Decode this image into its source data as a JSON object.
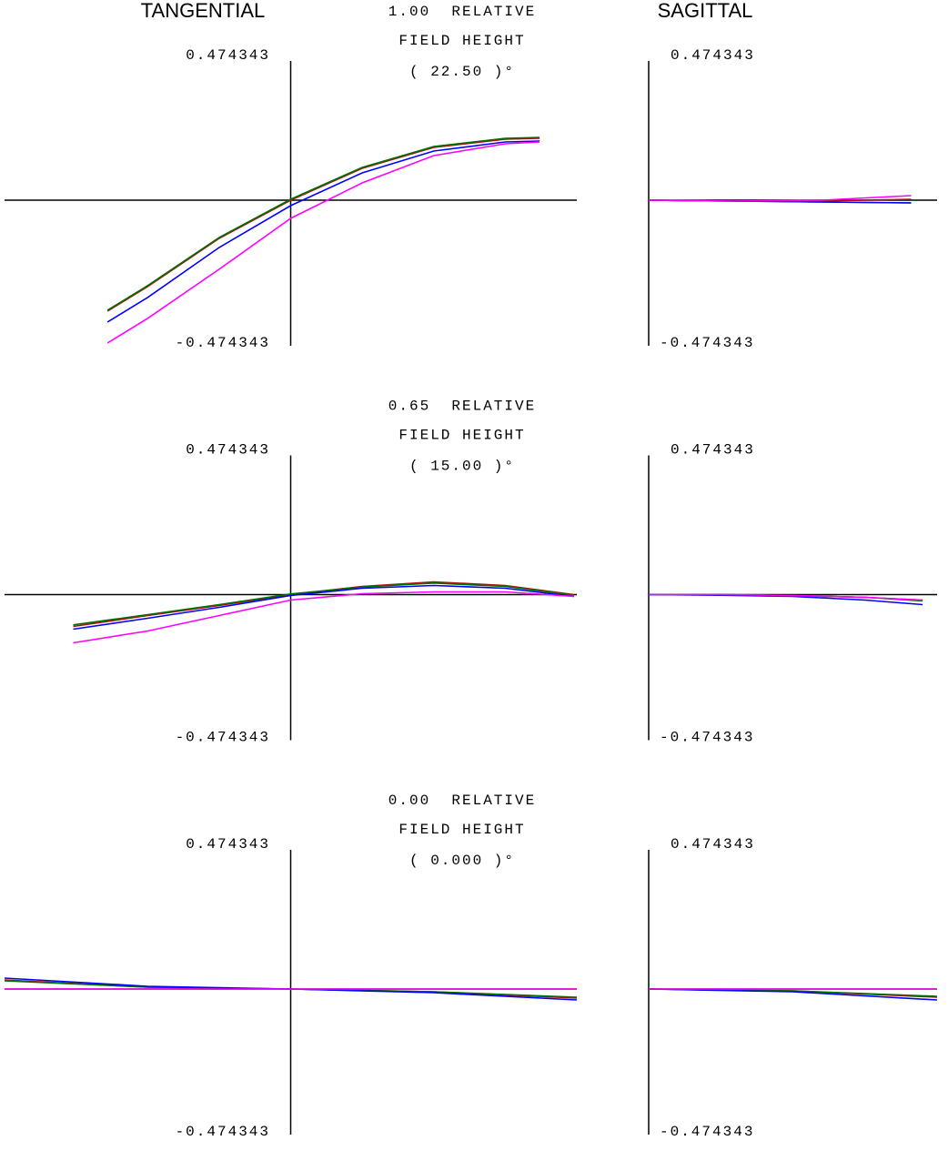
{
  "chart_data": [
    {
      "type": "line",
      "title": "TANGENTIAL",
      "annotations": [
        "1.00  RELATIVE",
        "FIELD HEIGHT",
        "( 22.50 )°"
      ],
      "x": [
        -0.64,
        -0.5,
        -0.25,
        0,
        0.25,
        0.5,
        0.75,
        0.87
      ],
      "xlim": [
        -1,
        1
      ],
      "ylim": [
        -0.474343,
        0.474343
      ],
      "yticks": [
        0.474343,
        -0.474343
      ],
      "series": [
        {
          "color": "#b01010",
          "values": [
            -0.366,
            -0.285,
            -0.126,
            0,
            0.105,
            0.174,
            0.201,
            0.204
          ]
        },
        {
          "color": "#007000",
          "values": [
            -0.363,
            -0.282,
            -0.123,
            0.003,
            0.108,
            0.177,
            0.204,
            0.207
          ]
        },
        {
          "color": "#0000ff",
          "values": [
            -0.402,
            -0.321,
            -0.156,
            -0.018,
            0.09,
            0.162,
            0.192,
            0.195
          ]
        },
        {
          "color": "#ff00ff",
          "values": [
            -0.471,
            -0.39,
            -0.228,
            -0.06,
            0.057,
            0.147,
            0.186,
            0.192
          ]
        }
      ]
    },
    {
      "type": "line",
      "title": "SAGITTAL",
      "x": [
        0,
        0.3,
        0.6,
        0.91
      ],
      "xlim": [
        0,
        1
      ],
      "ylim": [
        -0.474343,
        0.474343
      ],
      "yticks": [
        0.474343,
        -0.474343
      ],
      "series": [
        {
          "color": "#b01010",
          "values": [
            0,
            -0.003,
            -0.003,
            0.003
          ]
        },
        {
          "color": "#007000",
          "values": [
            0,
            -0.003,
            -0.006,
            -0.009
          ]
        },
        {
          "color": "#0000ff",
          "values": [
            0,
            -0.003,
            -0.006,
            -0.009
          ]
        },
        {
          "color": "#ff00ff",
          "values": [
            0,
            -0.003,
            0,
            0.015
          ]
        }
      ]
    },
    {
      "type": "line",
      "annotations": [
        "0.65  RELATIVE",
        "FIELD HEIGHT",
        "( 15.00 )°"
      ],
      "x": [
        -0.76,
        -0.5,
        -0.25,
        0,
        0.25,
        0.5,
        0.75,
        0.99
      ],
      "xlim": [
        -1,
        1
      ],
      "ylim": [
        -0.474343,
        0.474343
      ],
      "yticks": [
        0.474343,
        -0.474343
      ],
      "series": [
        {
          "color": "#b01010",
          "values": [
            -0.105,
            -0.069,
            -0.036,
            0,
            0.027,
            0.042,
            0.03,
            0
          ]
        },
        {
          "color": "#007000",
          "values": [
            -0.1,
            -0.066,
            -0.033,
            0.002,
            0.025,
            0.038,
            0.027,
            -0.002
          ]
        },
        {
          "color": "#0000ff",
          "values": [
            -0.114,
            -0.078,
            -0.042,
            -0.003,
            0.021,
            0.03,
            0.021,
            -0.006
          ]
        },
        {
          "color": "#ff00ff",
          "values": [
            -0.159,
            -0.12,
            -0.069,
            -0.018,
            0.003,
            0.009,
            0.009,
            -0.006
          ]
        }
      ]
    },
    {
      "type": "line",
      "x": [
        0,
        0.25,
        0.5,
        0.75,
        0.95
      ],
      "xlim": [
        0,
        1
      ],
      "ylim": [
        -0.474343,
        0.474343
      ],
      "yticks": [
        0.474343,
        -0.474343
      ],
      "series": [
        {
          "color": "#b01010",
          "values": [
            0,
            0,
            -0.003,
            -0.009,
            -0.018
          ]
        },
        {
          "color": "#007000",
          "values": [
            0,
            0,
            -0.003,
            -0.009,
            -0.021
          ]
        },
        {
          "color": "#0000ff",
          "values": [
            0,
            -0.002,
            -0.006,
            -0.018,
            -0.033
          ]
        },
        {
          "color": "#ff00ff",
          "values": [
            0,
            0,
            -0.003,
            -0.009,
            -0.018
          ]
        }
      ]
    },
    {
      "type": "line",
      "annotations": [
        "0.00  RELATIVE",
        "FIELD HEIGHT",
        "( 0.000 )°"
      ],
      "x": [
        -1,
        -0.5,
        0,
        0.5,
        1
      ],
      "xlim": [
        -1,
        1
      ],
      "ylim": [
        -0.474343,
        0.474343
      ],
      "yticks": [
        0.474343,
        -0.474343
      ],
      "series": [
        {
          "color": "#b01010",
          "values": [
            0.03,
            0.006,
            0,
            -0.009,
            -0.03
          ]
        },
        {
          "color": "#007000",
          "values": [
            0.027,
            0.006,
            0,
            -0.009,
            -0.027
          ]
        },
        {
          "color": "#0000ff",
          "values": [
            0.036,
            0.009,
            0,
            -0.012,
            -0.036
          ]
        },
        {
          "color": "#ff00ff",
          "values": [
            0,
            0,
            0,
            0,
            0
          ]
        }
      ]
    },
    {
      "type": "line",
      "x": [
        0,
        0.5,
        1
      ],
      "xlim": [
        0,
        1
      ],
      "ylim": [
        -0.474343,
        0.474343
      ],
      "yticks": [
        0.474343,
        -0.474343
      ],
      "series": [
        {
          "color": "#b01010",
          "values": [
            0,
            -0.006,
            -0.027
          ]
        },
        {
          "color": "#007000",
          "values": [
            0,
            -0.006,
            -0.024
          ]
        },
        {
          "color": "#0000ff",
          "values": [
            0,
            -0.009,
            -0.036
          ]
        },
        {
          "color": "#ff00ff",
          "values": [
            0,
            0,
            0
          ]
        }
      ]
    }
  ]
}
